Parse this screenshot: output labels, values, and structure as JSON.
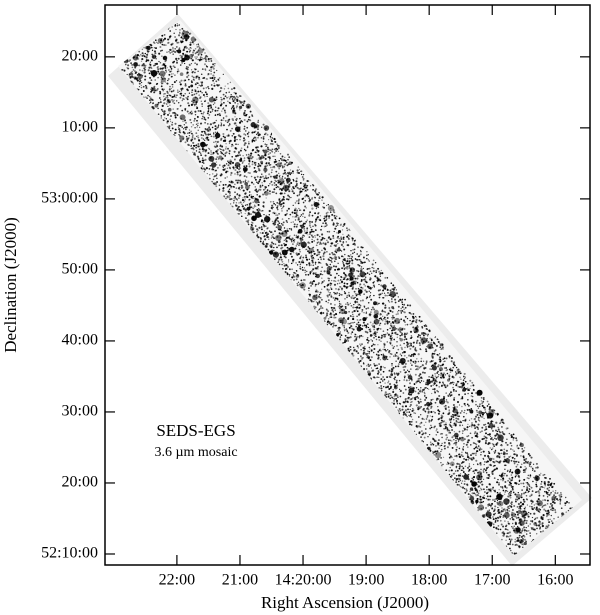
{
  "chart_data": {
    "type": "image",
    "xlabel": "Right Ascension (J2000)",
    "ylabel": "Declination (J2000)",
    "annotations": [
      "SEDS-EGS",
      "3.6 µm mosaic"
    ],
    "xlim": [
      23.14,
      15.45
    ],
    "xticks": [
      {
        "value": 22,
        "label": "22:00"
      },
      {
        "value": 21,
        "label": "21:00"
      },
      {
        "value": 20,
        "label": "14:20:00"
      },
      {
        "value": 19,
        "label": "19:00"
      },
      {
        "value": 18,
        "label": "18:00"
      },
      {
        "value": 17,
        "label": "17:00"
      },
      {
        "value": 16,
        "label": "16:00"
      }
    ],
    "ylim": [
      8.45,
      87.3
    ],
    "yticks": [
      {
        "value": 80,
        "label": "20:00"
      },
      {
        "value": 70,
        "label": "10:00"
      },
      {
        "value": 60,
        "label": "53:00:00"
      },
      {
        "value": 50,
        "label": "50:00"
      },
      {
        "value": 40,
        "label": "40:00"
      },
      {
        "value": 30,
        "label": "30:00"
      },
      {
        "value": 20,
        "label": "20:00"
      },
      {
        "value": 10,
        "label": "52:10:00"
      }
    ]
  }
}
